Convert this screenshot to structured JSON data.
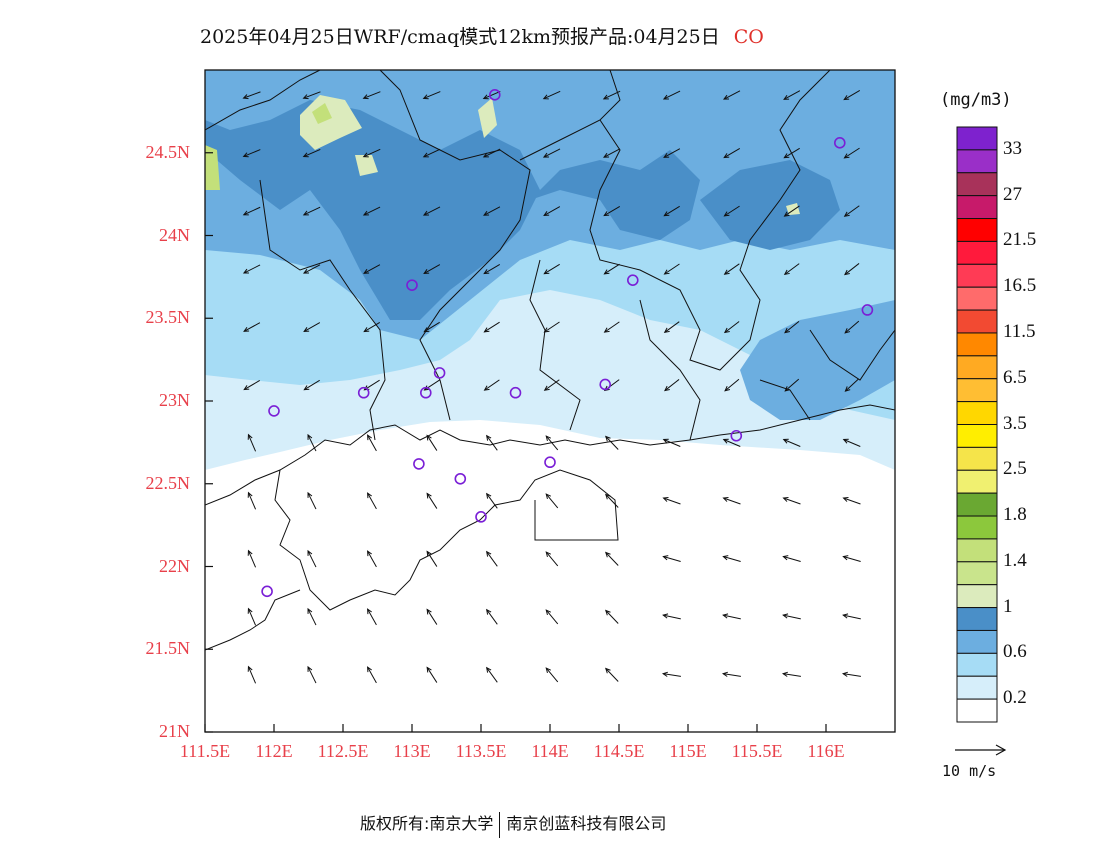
{
  "title": {
    "text": "2025年04月25日WRF/cmaq模式12km预报产品:04月25日",
    "species": "CO"
  },
  "axes": {
    "lat_ticks": [
      "24.5N",
      "24N",
      "23.5N",
      "23N",
      "22.5N",
      "22N",
      "21.5N",
      "21N"
    ],
    "lat_values": [
      24.5,
      24,
      23.5,
      23,
      22.5,
      22,
      21.5,
      21
    ],
    "lon_ticks": [
      "111.5E",
      "112E",
      "112.5E",
      "113E",
      "113.5E",
      "114E",
      "114.5E",
      "115E",
      "115.5E",
      "116E"
    ],
    "lon_values": [
      111.5,
      112,
      112.5,
      113,
      113.5,
      114,
      114.5,
      115,
      115.5,
      116
    ],
    "lat_range": [
      21,
      25
    ],
    "lon_range": [
      111.5,
      116.5
    ],
    "tick_color": "#e8404a"
  },
  "legend": {
    "unit": "(mg/m3)",
    "labels": [
      "33",
      "27",
      "21.5",
      "16.5",
      "11.5",
      "6.5",
      "3.5",
      "2.5",
      "1.8",
      "1.4",
      "1",
      "0.6",
      "0.2"
    ],
    "colors": [
      "#7e22ce",
      "#9a2fc8",
      "#a8325a",
      "#c71a6a",
      "#ff0000",
      "#ff1a3c",
      "#ff3b55",
      "#ff6b6b",
      "#f24a32",
      "#ff8800",
      "#ffaa22",
      "#ffbe33",
      "#ffd700",
      "#ffee00",
      "#f5e44a",
      "#f0f070",
      "#6aa832",
      "#8cc83c",
      "#c3e07a",
      "#c9e48c",
      "#dcebbd",
      "#4a8fc8",
      "#6caee0",
      "#a6dcf5",
      "#d6eefa",
      "#ffffff"
    ]
  },
  "wind_reference": "10 m/s",
  "stations": [
    {
      "lon": 113.6,
      "lat": 24.85
    },
    {
      "lon": 116.1,
      "lat": 24.56
    },
    {
      "lon": 113.0,
      "lat": 23.7
    },
    {
      "lon": 114.6,
      "lat": 23.73
    },
    {
      "lon": 116.3,
      "lat": 23.55
    },
    {
      "lon": 113.2,
      "lat": 23.17
    },
    {
      "lon": 112.65,
      "lat": 23.05
    },
    {
      "lon": 113.1,
      "lat": 23.05
    },
    {
      "lon": 113.75,
      "lat": 23.05
    },
    {
      "lon": 114.4,
      "lat": 23.1
    },
    {
      "lon": 112.0,
      "lat": 22.94
    },
    {
      "lon": 115.35,
      "lat": 22.79
    },
    {
      "lon": 113.05,
      "lat": 22.62
    },
    {
      "lon": 113.35,
      "lat": 22.53
    },
    {
      "lon": 114.0,
      "lat": 22.63
    },
    {
      "lon": 113.5,
      "lat": 22.3
    },
    {
      "lon": 111.95,
      "lat": 21.85
    }
  ],
  "footer": {
    "left": "版权所有:南京大学",
    "right": "南京创蓝科技有限公司"
  }
}
